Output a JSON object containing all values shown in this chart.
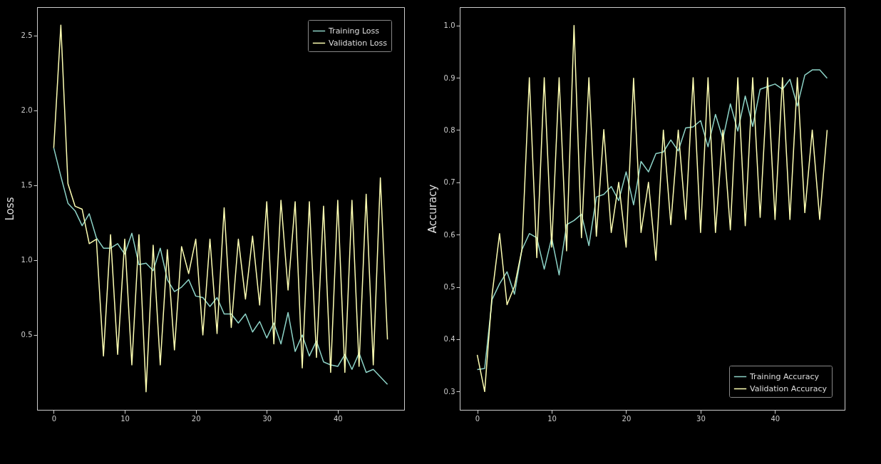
{
  "chart_data": [
    {
      "type": "line",
      "ylabel": "Loss",
      "x": [
        0,
        1,
        2,
        3,
        4,
        5,
        6,
        7,
        8,
        9,
        10,
        11,
        12,
        13,
        14,
        15,
        16,
        17,
        18,
        19,
        20,
        21,
        22,
        23,
        24,
        25,
        26,
        27,
        28,
        29,
        30,
        31,
        32,
        33,
        34,
        35,
        36,
        37,
        38,
        39,
        40,
        41,
        42,
        43,
        44,
        45,
        46,
        47
      ],
      "xlim": [
        -2.35,
        49.35
      ],
      "xticks": [
        0,
        10,
        20,
        30,
        40
      ],
      "ylim": [
        0,
        2.69
      ],
      "yticks": [
        {
          "value": 0.5,
          "label": "0.5"
        },
        {
          "value": 1,
          "label": "1.0"
        },
        {
          "value": 1.5,
          "label": "1.5"
        },
        {
          "value": 2,
          "label": "2.0"
        },
        {
          "value": 2.5,
          "label": "2.5"
        }
      ],
      "grid": false,
      "legend": "top right",
      "line_style": "solid",
      "series": [
        {
          "name": "Training Loss",
          "color": "#8dd3c7",
          "values": [
            1.75,
            1.56,
            1.38,
            1.33,
            1.23,
            1.31,
            1.15,
            1.08,
            1.08,
            1.11,
            1.04,
            1.18,
            0.97,
            0.98,
            0.93,
            1.08,
            0.87,
            0.79,
            0.82,
            0.87,
            0.76,
            0.75,
            0.69,
            0.75,
            0.64,
            0.64,
            0.58,
            0.64,
            0.52,
            0.59,
            0.48,
            0.58,
            0.44,
            0.65,
            0.39,
            0.5,
            0.36,
            0.46,
            0.32,
            0.3,
            0.29,
            0.37,
            0.27,
            0.38,
            0.25,
            0.27,
            0.22,
            0.17
          ]
        },
        {
          "name": "Validation Loss",
          "color": "#feffb3",
          "values": [
            1.75,
            2.57,
            1.51,
            1.36,
            1.34,
            1.11,
            1.14,
            0.36,
            1.17,
            0.37,
            1.14,
            0.3,
            1.17,
            0.12,
            1.1,
            0.3,
            1.07,
            0.4,
            1.09,
            0.91,
            1.14,
            0.5,
            1.14,
            0.51,
            1.35,
            0.55,
            1.14,
            0.74,
            1.16,
            0.7,
            1.39,
            0.44,
            1.4,
            0.8,
            1.39,
            0.28,
            1.39,
            0.35,
            1.36,
            0.25,
            1.4,
            0.25,
            1.4,
            0.29,
            1.44,
            0.3,
            1.55,
            0.47
          ]
        }
      ]
    },
    {
      "type": "line",
      "ylabel": "Accuracy",
      "x": [
        0,
        1,
        2,
        3,
        4,
        5,
        6,
        7,
        8,
        9,
        10,
        11,
        12,
        13,
        14,
        15,
        16,
        17,
        18,
        19,
        20,
        21,
        22,
        23,
        24,
        25,
        26,
        27,
        28,
        29,
        30,
        31,
        32,
        33,
        34,
        35,
        36,
        37,
        38,
        39,
        40,
        41,
        42,
        43,
        44,
        45,
        46,
        47
      ],
      "xlim": [
        -2.35,
        49.35
      ],
      "xticks": [
        0,
        10,
        20,
        30,
        40
      ],
      "ylim": [
        0.265,
        1.035
      ],
      "yticks": [
        0.3,
        0.4,
        0.5,
        0.6,
        0.7,
        0.8,
        0.9,
        {
          "value": 1,
          "label": "1.0"
        }
      ],
      "grid": false,
      "legend": "bottom right",
      "line_style": "solid",
      "series": [
        {
          "name": "Training Accuracy",
          "color": "#8dd3c7",
          "values": [
            0.342,
            0.344,
            0.476,
            0.506,
            0.529,
            0.486,
            0.571,
            0.602,
            0.594,
            0.534,
            0.594,
            0.523,
            0.619,
            0.627,
            0.639,
            0.579,
            0.672,
            0.677,
            0.692,
            0.665,
            0.72,
            0.657,
            0.74,
            0.72,
            0.755,
            0.758,
            0.781,
            0.76,
            0.804,
            0.806,
            0.818,
            0.768,
            0.83,
            0.783,
            0.85,
            0.798,
            0.865,
            0.807,
            0.878,
            0.883,
            0.888,
            0.878,
            0.897,
            0.846,
            0.905,
            0.915,
            0.915,
            0.899
          ]
        },
        {
          "name": "Validation Accuracy",
          "color": "#feffb3",
          "values": [
            0.37,
            0.3,
            0.486,
            0.602,
            0.466,
            0.501,
            0.571,
            0.9,
            0.556,
            0.9,
            0.576,
            0.9,
            0.569,
            1.0,
            0.594,
            0.9,
            0.597,
            0.801,
            0.604,
            0.7,
            0.576,
            0.899,
            0.604,
            0.7,
            0.551,
            0.8,
            0.619,
            0.8,
            0.629,
            0.9,
            0.604,
            0.9,
            0.604,
            0.8,
            0.609,
            0.9,
            0.617,
            0.9,
            0.633,
            0.9,
            0.629,
            0.9,
            0.629,
            0.9,
            0.642,
            0.8,
            0.629,
            0.8
          ]
        }
      ]
    }
  ]
}
